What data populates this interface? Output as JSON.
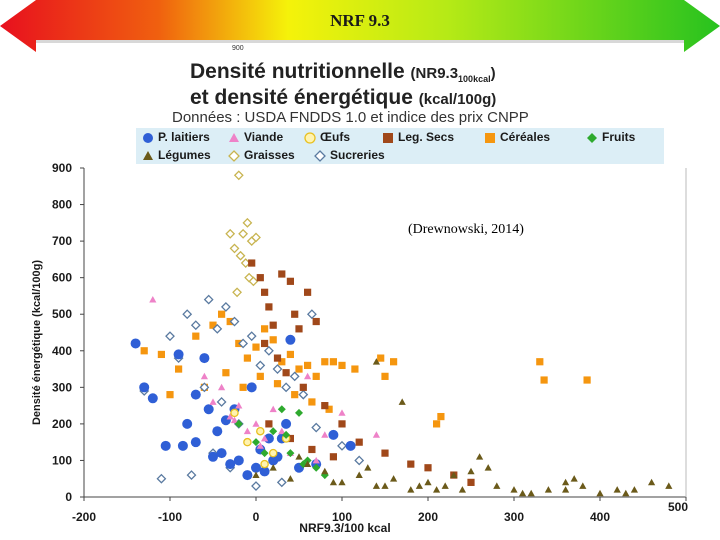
{
  "banner": {
    "title": "NRF 9.3",
    "small_label": "900"
  },
  "header": {
    "title_line1": "Densité nutritionnelle",
    "title_line1_suffix": "(NR9.3",
    "title_line1_sub": "100kcal",
    "title_line1_close": ")",
    "title_line2": "et densité énergétique",
    "title_line2_suffix": "(kcal/100g)",
    "subtitle": "Données : USDA FNDDS 1.0 et indice des prix CNPP"
  },
  "citation": "(Drewnowski, 2014)",
  "colors": {
    "banner_red": "#e8101e",
    "banner_yellow": "#f5f20a",
    "banner_green": "#27c21f",
    "legend_bg": "#dceef6"
  },
  "legend": [
    {
      "label": "P. laitiers",
      "symbol": "circle",
      "color": "#2f5fd6",
      "icon": "blue-circle-icon"
    },
    {
      "label": "Viande",
      "symbol": "triangle",
      "color": "#ee82c8",
      "icon": "pink-triangle-icon"
    },
    {
      "label": "Œufs",
      "symbol": "circle-hollow",
      "color": "#e8c020",
      "icon": "yellow-circle-icon"
    },
    {
      "label": "Leg. Secs",
      "symbol": "square",
      "color": "#a0481a",
      "icon": "brown-square-icon"
    },
    {
      "label": "Céréales",
      "symbol": "square",
      "color": "#f5960f",
      "icon": "orange-square-icon"
    },
    {
      "label": "Fruits",
      "symbol": "diamond",
      "color": "#2eaa2e",
      "icon": "green-diamond-icon"
    },
    {
      "label": "Légumes",
      "symbol": "triangle",
      "color": "#6b5a1a",
      "icon": "olive-triangle-icon"
    },
    {
      "label": "Graisses",
      "symbol": "diamond-hollow",
      "color": "#c8b450",
      "icon": "yellow-diamond-icon"
    },
    {
      "label": "Sucreries",
      "symbol": "diamond-hollow",
      "color": "#5a7aa0",
      "icon": "blue-diamond-icon"
    }
  ],
  "chart_data": {
    "type": "scatter",
    "title": "Densité nutritionnelle (NR9.3 100kcal) et densité énergétique (kcal/100g)",
    "xlabel": "NRF9.3/100 kcal",
    "ylabel": "Densité énergétique (kcal/100g)",
    "xlim": [
      -200,
      500
    ],
    "ylim": [
      0,
      900
    ],
    "xticks": [
      -200,
      -100,
      0,
      100,
      200,
      300,
      400,
      500
    ],
    "yticks": [
      0,
      100,
      200,
      300,
      400,
      500,
      600,
      700,
      800,
      900
    ],
    "grid": false,
    "series": [
      {
        "name": "P. laitiers",
        "x": [
          -120,
          -105,
          -85,
          -70,
          -60,
          -50,
          -40,
          -30,
          -20,
          -10,
          0,
          10,
          20,
          30,
          40,
          50,
          70,
          90,
          110,
          -140,
          -90,
          -70,
          -45,
          -35,
          -25,
          -5,
          5,
          15,
          25,
          35,
          -130,
          -80,
          -55
        ],
        "y": [
          270,
          140,
          140,
          150,
          380,
          110,
          120,
          90,
          100,
          60,
          80,
          70,
          100,
          160,
          430,
          80,
          90,
          170,
          140,
          420,
          390,
          280,
          180,
          210,
          240,
          300,
          130,
          160,
          110,
          200,
          300,
          200,
          240
        ]
      },
      {
        "name": "Viande",
        "x": [
          -120,
          -60,
          -40,
          -30,
          -20,
          -10,
          0,
          10,
          20,
          40,
          60,
          80,
          140,
          -50,
          -25,
          5,
          30,
          70,
          100
        ],
        "y": [
          540,
          330,
          300,
          220,
          250,
          180,
          200,
          160,
          240,
          120,
          330,
          170,
          170,
          260,
          210,
          140,
          180,
          100,
          230
        ]
      },
      {
        "name": "Œufs",
        "x": [
          -10,
          5,
          20,
          35,
          -25,
          10
        ],
        "y": [
          150,
          180,
          120,
          160,
          230,
          90
        ]
      },
      {
        "name": "Leg. Secs",
        "x": [
          -5,
          5,
          10,
          15,
          20,
          30,
          40,
          45,
          50,
          60,
          70,
          10,
          25,
          35,
          55,
          80,
          100,
          120,
          150,
          180,
          200,
          230,
          250,
          15,
          40,
          65,
          90
        ],
        "y": [
          640,
          600,
          560,
          520,
          470,
          610,
          590,
          500,
          460,
          560,
          480,
          420,
          380,
          340,
          300,
          250,
          200,
          150,
          120,
          90,
          80,
          60,
          40,
          200,
          160,
          130,
          110
        ]
      },
      {
        "name": "Céréales",
        "x": [
          -130,
          -110,
          -90,
          -70,
          -50,
          -40,
          -30,
          -20,
          -10,
          0,
          10,
          20,
          30,
          40,
          50,
          60,
          70,
          80,
          90,
          100,
          115,
          150,
          210,
          215,
          330,
          335,
          385,
          -100,
          -60,
          -35,
          -15,
          5,
          25,
          45,
          65,
          85,
          145,
          160
        ],
        "y": [
          400,
          390,
          350,
          440,
          470,
          500,
          480,
          420,
          380,
          410,
          460,
          430,
          370,
          390,
          350,
          360,
          330,
          370,
          370,
          360,
          350,
          330,
          200,
          220,
          370,
          320,
          320,
          280,
          300,
          340,
          300,
          330,
          310,
          280,
          260,
          240,
          380,
          370
        ]
      },
      {
        "name": "Fruits",
        "x": [
          -20,
          0,
          10,
          20,
          30,
          40,
          50,
          60,
          70,
          80,
          35,
          55
        ],
        "y": [
          200,
          150,
          120,
          180,
          240,
          120,
          230,
          100,
          80,
          60,
          170,
          90
        ]
      },
      {
        "name": "Légumes",
        "x": [
          0,
          20,
          40,
          60,
          80,
          100,
          120,
          140,
          160,
          180,
          200,
          220,
          240,
          260,
          280,
          300,
          320,
          340,
          360,
          380,
          400,
          420,
          440,
          460,
          480,
          140,
          170,
          230,
          270,
          360,
          50,
          90,
          130,
          190,
          250,
          310,
          370,
          430,
          150,
          210
        ],
        "y": [
          60,
          80,
          50,
          90,
          70,
          40,
          60,
          30,
          50,
          20,
          40,
          30,
          20,
          110,
          30,
          20,
          10,
          20,
          40,
          30,
          10,
          20,
          20,
          40,
          30,
          370,
          260,
          60,
          80,
          20,
          110,
          40,
          80,
          30,
          70,
          10,
          50,
          10,
          30,
          20
        ]
      },
      {
        "name": "Graisses",
        "x": [
          -20,
          -15,
          -10,
          -5,
          0,
          -25,
          -30,
          -18,
          -12,
          -8,
          -22,
          -3
        ],
        "y": [
          880,
          720,
          750,
          700,
          710,
          680,
          720,
          660,
          640,
          600,
          560,
          590
        ]
      },
      {
        "name": "Sucreries",
        "x": [
          -130,
          -100,
          -80,
          -70,
          -55,
          -45,
          -35,
          -25,
          -15,
          -5,
          5,
          15,
          25,
          35,
          45,
          55,
          65,
          -90,
          -60,
          -40,
          -20,
          70,
          100,
          120,
          -50,
          -30,
          -110,
          -75,
          0,
          30
        ],
        "y": [
          290,
          440,
          500,
          470,
          540,
          460,
          520,
          480,
          420,
          440,
          360,
          400,
          350,
          300,
          330,
          280,
          500,
          380,
          300,
          260,
          200,
          190,
          140,
          100,
          120,
          80,
          50,
          60,
          30,
          40
        ]
      }
    ]
  }
}
